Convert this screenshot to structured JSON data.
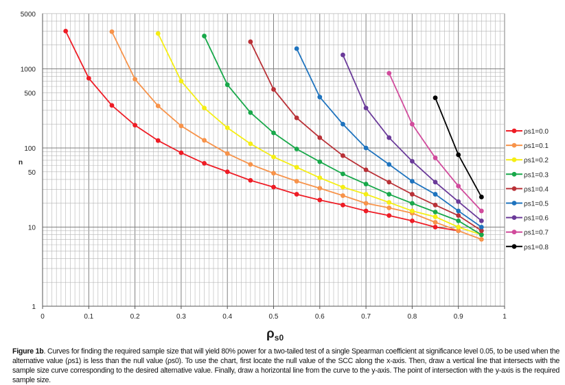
{
  "chart_data": {
    "type": "line",
    "title": "",
    "xlabel": "ρ",
    "xlabel_sub": "s0",
    "ylabel": "n",
    "xlim": [
      0,
      1
    ],
    "ylim": [
      1,
      5000
    ],
    "yscale": "log",
    "grid": true,
    "legend_position": "right",
    "x_ticks": [
      "0",
      "0.1",
      "0.2",
      "0.3",
      "0.4",
      "0.5",
      "0.6",
      "0.7",
      "0.8",
      "0.9",
      "1"
    ],
    "y_ticks": [
      {
        "value": 1,
        "label": "1"
      },
      {
        "value": 10,
        "label": "10"
      },
      {
        "value": 50,
        "label": "50"
      },
      {
        "value": 100,
        "label": "100"
      },
      {
        "value": 500,
        "label": "500"
      },
      {
        "value": 1000,
        "label": "1000"
      },
      {
        "value": 5000,
        "label": "5000"
      }
    ],
    "series": [
      {
        "name": "ρs1=0.0",
        "color": "#ee1c25",
        "x": [
          0.05,
          0.1,
          0.15,
          0.2,
          0.25,
          0.3,
          0.35,
          0.4,
          0.45,
          0.5,
          0.55,
          0.6,
          0.65,
          0.7,
          0.75,
          0.8,
          0.85,
          0.9
        ],
        "y": [
          3000,
          760,
          345,
          194,
          124,
          87,
          64,
          50,
          39,
          32,
          26,
          22,
          19,
          16,
          14,
          12,
          10,
          9
        ]
      },
      {
        "name": "ρs1=0.1",
        "color": "#f7934a",
        "x": [
          0.15,
          0.2,
          0.25,
          0.3,
          0.35,
          0.4,
          0.45,
          0.5,
          0.55,
          0.6,
          0.65,
          0.7,
          0.75,
          0.8,
          0.85,
          0.9,
          0.95
        ],
        "y": [
          2950,
          740,
          340,
          190,
          125,
          85,
          62,
          48,
          38,
          31,
          25,
          20,
          17.5,
          15,
          11.5,
          9,
          7
        ]
      },
      {
        "name": "ρs1=0.2",
        "color": "#f5ee14",
        "x": [
          0.25,
          0.3,
          0.35,
          0.4,
          0.45,
          0.5,
          0.55,
          0.6,
          0.65,
          0.7,
          0.75,
          0.8,
          0.85,
          0.9,
          0.95
        ],
        "y": [
          2800,
          700,
          320,
          180,
          113,
          77,
          57,
          42,
          32,
          26,
          20.5,
          16,
          13.5,
          10,
          8
        ]
      },
      {
        "name": "ρs1=0.3",
        "color": "#18a84a",
        "x": [
          0.35,
          0.4,
          0.45,
          0.5,
          0.55,
          0.6,
          0.65,
          0.7,
          0.75,
          0.8,
          0.85,
          0.9,
          0.95
        ],
        "y": [
          2600,
          630,
          280,
          155,
          97,
          67,
          47,
          35,
          26,
          20,
          15.5,
          12,
          8
        ]
      },
      {
        "name": "ρs1=0.4",
        "color": "#b93137",
        "x": [
          0.45,
          0.5,
          0.55,
          0.6,
          0.65,
          0.7,
          0.75,
          0.8,
          0.85,
          0.9,
          0.95
        ],
        "y": [
          2200,
          550,
          240,
          135,
          80,
          53,
          37,
          26,
          19,
          14,
          9
        ]
      },
      {
        "name": "ρs1=0.5",
        "color": "#1e73be",
        "x": [
          0.55,
          0.6,
          0.65,
          0.7,
          0.75,
          0.8,
          0.85,
          0.9,
          0.95
        ],
        "y": [
          1800,
          440,
          200,
          100,
          62,
          38,
          26,
          16,
          10
        ]
      },
      {
        "name": "ρs1=0.6",
        "color": "#6a3a99",
        "x": [
          0.65,
          0.7,
          0.75,
          0.8,
          0.85,
          0.9,
          0.95
        ],
        "y": [
          1500,
          320,
          135,
          68,
          37,
          21,
          12
        ]
      },
      {
        "name": "ρs1=0.7",
        "color": "#d14b9c",
        "x": [
          0.75,
          0.8,
          0.85,
          0.9,
          0.95
        ],
        "y": [
          880,
          200,
          75,
          33,
          16
        ]
      },
      {
        "name": "ρs1=0.8",
        "color": "#000000",
        "x": [
          0.85,
          0.9,
          0.95
        ],
        "y": [
          430,
          82,
          24
        ]
      }
    ]
  },
  "caption": {
    "label": "Figure 1b",
    "text": ". Curves for finding the required sample size that will yield 80% power for a two-tailed test of a single Spearman coefficient at significance level 0.05, to be used when the alternative value (ρs1) is less than the null value (ρs0). To use the chart, first locate the null value of the SCC along the x-axis. Then, draw a vertical line that intersects with the sample size curve corresponding to the desired alternative value. Finally, draw a horizontal line from the curve to the y-axis. The point of intersection with the y-axis is the required sample size."
  }
}
